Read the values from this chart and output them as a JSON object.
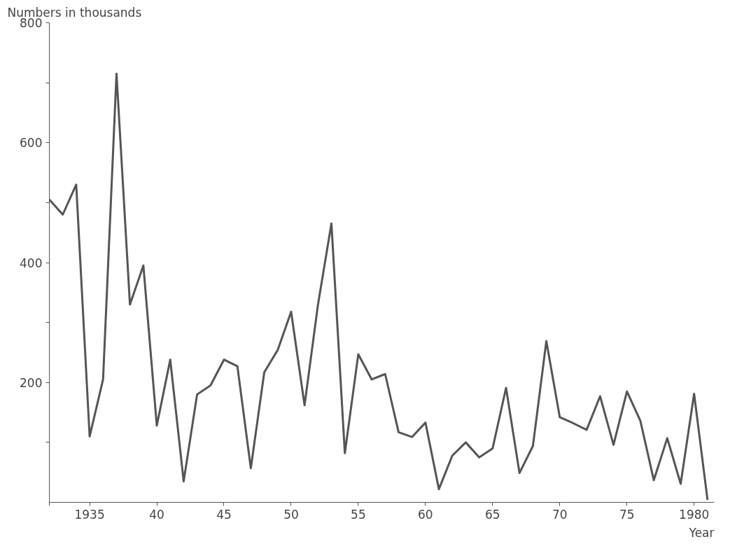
{
  "chart_data": {
    "type": "line",
    "ylabel": "Numbers in thousands",
    "xlabel": "Year",
    "x": [
      1932,
      1933,
      1934,
      1935,
      1936,
      1937,
      1938,
      1939,
      1940,
      1941,
      1942,
      1943,
      1944,
      1945,
      1946,
      1947,
      1948,
      1949,
      1950,
      1951,
      1952,
      1953,
      1954,
      1955,
      1956,
      1957,
      1958,
      1959,
      1960,
      1961,
      1962,
      1963,
      1964,
      1965,
      1966,
      1967,
      1968,
      1969,
      1970,
      1971,
      1972,
      1973,
      1974,
      1975,
      1976,
      1977,
      1978,
      1979,
      1980,
      1981
    ],
    "series": [
      {
        "color": "#555555",
        "values": [
          505,
          480,
          530,
          110,
          205,
          715,
          330,
          395,
          128,
          238,
          35,
          180,
          195,
          238,
          227,
          57,
          217,
          254,
          318,
          162,
          330,
          465,
          82,
          247,
          205,
          214,
          117,
          109,
          133,
          22,
          78,
          100,
          75,
          90,
          191,
          49,
          94,
          269,
          142,
          132,
          121,
          177,
          96,
          185,
          136,
          37,
          107,
          31,
          181,
          4
        ]
      }
    ],
    "xlim": [
      1932,
      1981.5
    ],
    "xticks": [
      {
        "value": 1932,
        "label": null
      },
      1935,
      {
        "value": 1940,
        "label": "40"
      },
      {
        "value": 1945,
        "label": "45"
      },
      {
        "value": 1950,
        "label": "50"
      },
      {
        "value": 1955,
        "label": "55"
      },
      {
        "value": 1960,
        "label": "60"
      },
      {
        "value": 1965,
        "label": "65"
      },
      {
        "value": 1970,
        "label": "70"
      },
      {
        "value": 1975,
        "label": "75"
      },
      1980
    ],
    "ylim": [
      0,
      800
    ],
    "yticks": [
      {
        "value": 100,
        "label": null
      },
      200,
      {
        "value": 300,
        "label": null
      },
      400,
      {
        "value": 500,
        "label": null
      },
      600,
      {
        "value": 700,
        "label": null
      },
      800
    ],
    "grid": false,
    "marker": "none",
    "line_style": "solid"
  }
}
